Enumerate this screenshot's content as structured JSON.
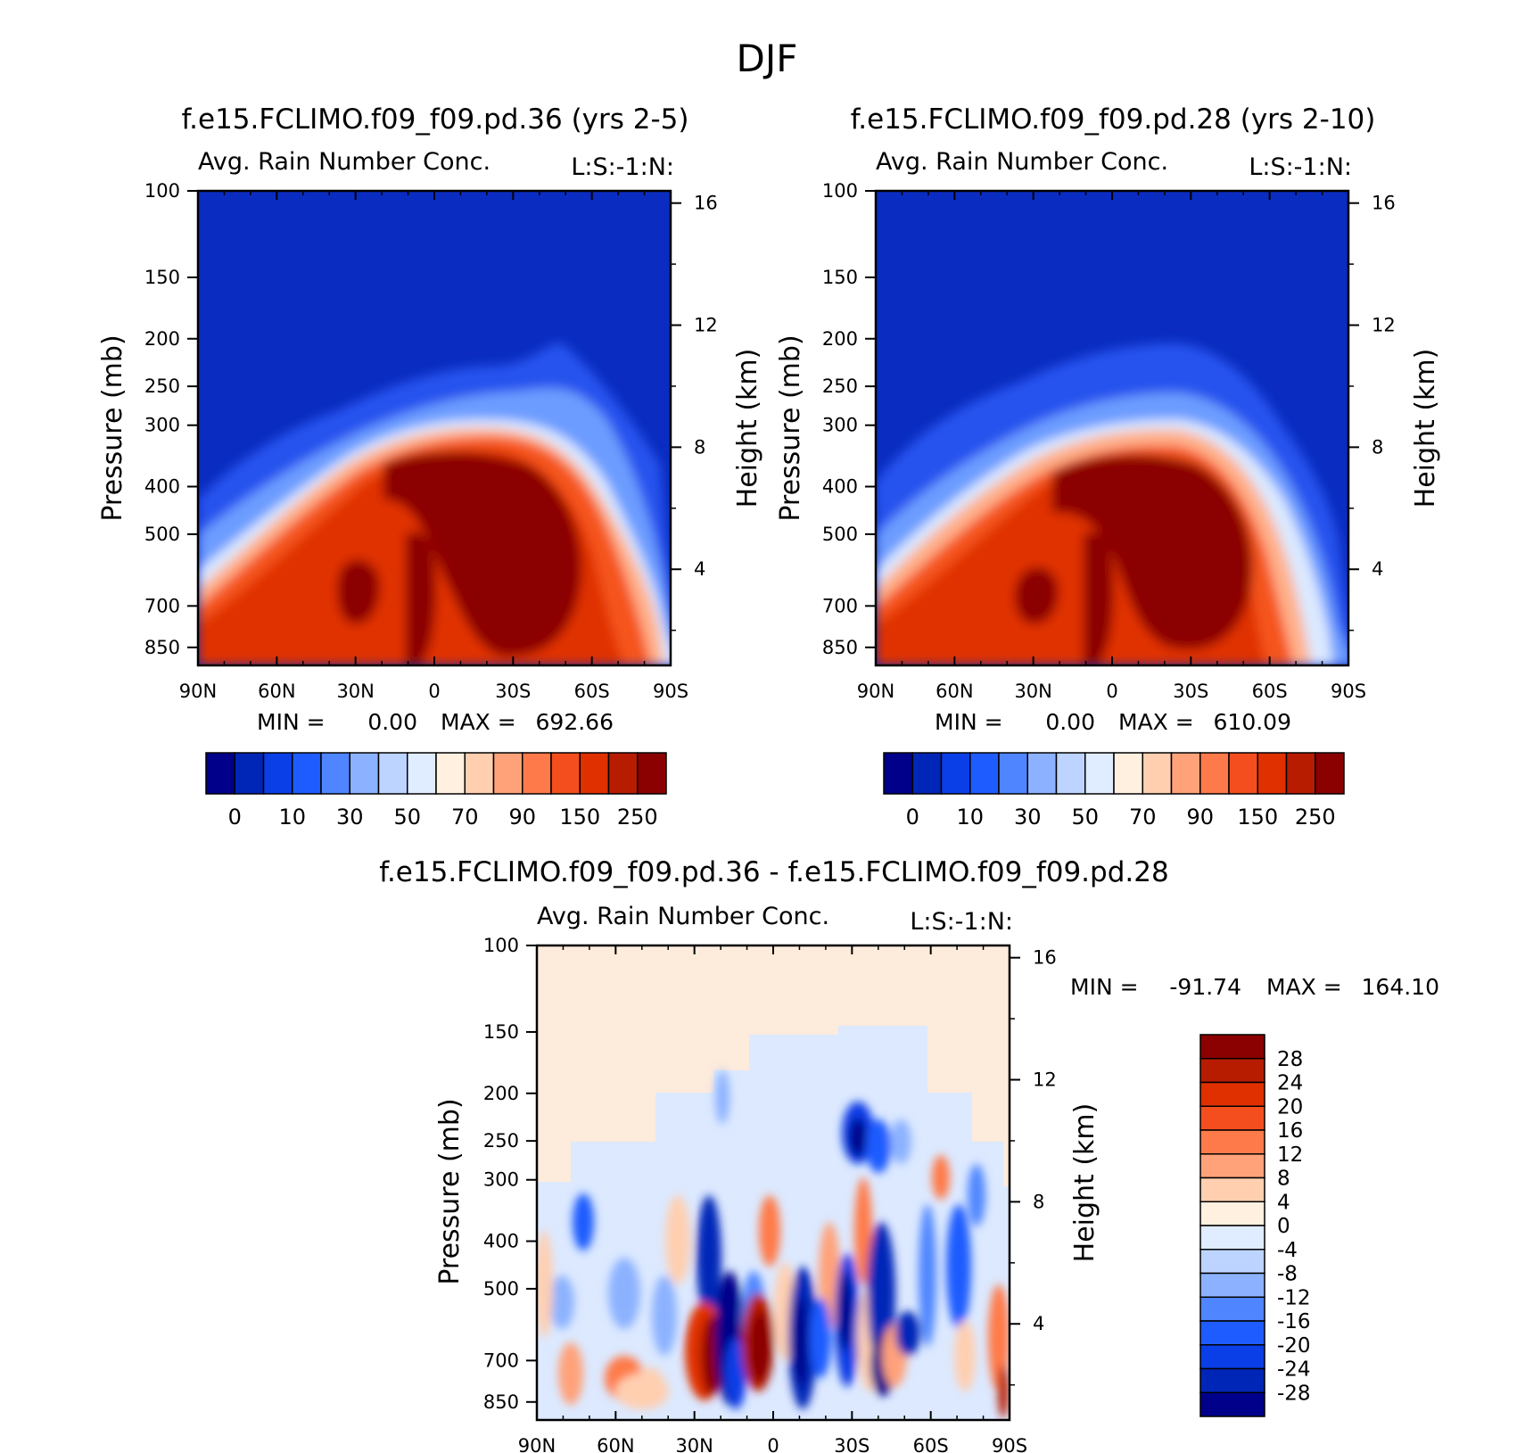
{
  "figure": {
    "title": "DJF"
  },
  "chart_data": [
    {
      "type": "heatmap",
      "title": "f.e15.FCLIMO.f09_f09.pd.36 (yrs 2-5)",
      "subtitle_left": "Avg. Rain Number Conc.",
      "subtitle_right": "L:S:-1:N:",
      "xlabel": "",
      "ylabel_left": "Pressure (mb)",
      "ylabel_right": "Height (km)",
      "x_ticks": [
        "90N",
        "60N",
        "30N",
        "0",
        "30S",
        "60S",
        "90S"
      ],
      "y_ticks_pressure": [
        "100",
        "150",
        "200",
        "250",
        "300",
        "400",
        "500",
        "700",
        "850"
      ],
      "y_ticks_height": [
        "16",
        "12",
        "8",
        "4"
      ],
      "stats": {
        "min_label": "MIN =",
        "min": "0.00",
        "max_label": "MAX =",
        "max": "692.66"
      },
      "colorbar": {
        "labels": [
          "0",
          "10",
          "30",
          "50",
          "70",
          "90",
          "150",
          "250"
        ],
        "colors": [
          "#00008a",
          "#0026b8",
          "#0a3ee6",
          "#1f5cff",
          "#4f86ff",
          "#8cb2ff",
          "#bcd4ff",
          "#e0ecff",
          "#fff0e0",
          "#ffcfb0",
          "#ffa27a",
          "#ff7a4a",
          "#f54e1e",
          "#e03000",
          "#b81c00",
          "#8b0000"
        ]
      }
    },
    {
      "type": "heatmap",
      "title": "f.e15.FCLIMO.f09_f09.pd.28 (yrs 2-10)",
      "subtitle_left": "Avg. Rain Number Conc.",
      "subtitle_right": "L:S:-1:N:",
      "xlabel": "",
      "ylabel_left": "Pressure (mb)",
      "ylabel_right": "Height (km)",
      "x_ticks": [
        "90N",
        "60N",
        "30N",
        "0",
        "30S",
        "60S",
        "90S"
      ],
      "y_ticks_pressure": [
        "100",
        "150",
        "200",
        "250",
        "300",
        "400",
        "500",
        "700",
        "850"
      ],
      "y_ticks_height": [
        "16",
        "12",
        "8",
        "4"
      ],
      "stats": {
        "min_label": "MIN =",
        "min": "0.00",
        "max_label": "MAX =",
        "max": "610.09"
      },
      "colorbar": {
        "labels": [
          "0",
          "10",
          "30",
          "50",
          "70",
          "90",
          "150",
          "250"
        ],
        "colors": [
          "#00008a",
          "#0026b8",
          "#0a3ee6",
          "#1f5cff",
          "#4f86ff",
          "#8cb2ff",
          "#bcd4ff",
          "#e0ecff",
          "#fff0e0",
          "#ffcfb0",
          "#ffa27a",
          "#ff7a4a",
          "#f54e1e",
          "#e03000",
          "#b81c00",
          "#8b0000"
        ]
      }
    },
    {
      "type": "heatmap",
      "title": "f.e15.FCLIMO.f09_f09.pd.36 - f.e15.FCLIMO.f09_f09.pd.28",
      "subtitle_left": "Avg. Rain Number Conc.",
      "subtitle_right": "L:S:-1:N:",
      "xlabel": "",
      "ylabel_left": "Pressure (mb)",
      "ylabel_right": "Height (km)",
      "x_ticks": [
        "90N",
        "60N",
        "30N",
        "0",
        "30S",
        "60S",
        "90S"
      ],
      "y_ticks_pressure": [
        "100",
        "150",
        "200",
        "250",
        "300",
        "400",
        "500",
        "700",
        "850"
      ],
      "y_ticks_height": [
        "16",
        "12",
        "8",
        "4"
      ],
      "stats": {
        "min_label": "MIN =",
        "min": "-91.74",
        "max_label": "MAX =",
        "max": "164.10"
      },
      "colorbar": {
        "labels": [
          "28",
          "24",
          "20",
          "16",
          "12",
          "8",
          "4",
          "0",
          "-4",
          "-8",
          "-12",
          "-16",
          "-20",
          "-24",
          "-28"
        ],
        "colors": [
          "#8b0000",
          "#b81c00",
          "#e03000",
          "#f54e1e",
          "#ff7a4a",
          "#ffa27a",
          "#ffcfb0",
          "#fff0e0",
          "#e0ecff",
          "#bcd4ff",
          "#8cb2ff",
          "#4f86ff",
          "#1f5cff",
          "#0a3ee6",
          "#0026b8",
          "#00008a"
        ]
      }
    }
  ]
}
